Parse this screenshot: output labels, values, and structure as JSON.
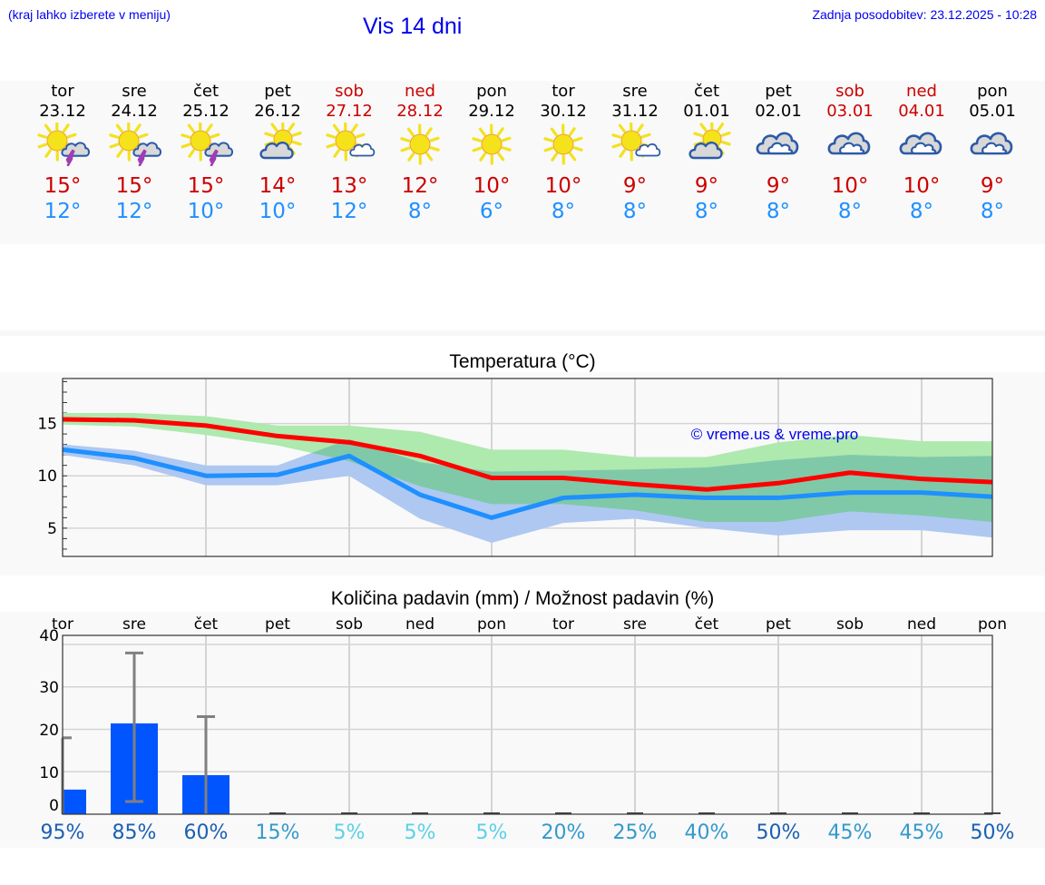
{
  "header": {
    "hint": "(kraj lahko izberete v meniju)",
    "title": "Vis 14 dni",
    "last_update": "Zadnja posodobitev: 23.12.2025 - 10:28"
  },
  "days": [
    {
      "dow": "tor",
      "date": "23.12",
      "weekend": false,
      "icon": "sun-cloud-thunder-icon",
      "tmax": "15°",
      "tmin": "12°",
      "precip_pct": "95%"
    },
    {
      "dow": "sre",
      "date": "24.12",
      "weekend": false,
      "icon": "sun-cloud-thunder-icon",
      "tmax": "15°",
      "tmin": "12°",
      "precip_pct": "85%"
    },
    {
      "dow": "čet",
      "date": "25.12",
      "weekend": false,
      "icon": "sun-cloud-thunder-icon",
      "tmax": "15°",
      "tmin": "10°",
      "precip_pct": "60%"
    },
    {
      "dow": "pet",
      "date": "26.12",
      "weekend": false,
      "icon": "cloud-sun-icon",
      "tmax": "14°",
      "tmin": "10°",
      "precip_pct": "15%"
    },
    {
      "dow": "sob",
      "date": "27.12",
      "weekend": true,
      "icon": "sun-small-cloud-icon",
      "tmax": "13°",
      "tmin": "12°",
      "precip_pct": "5%"
    },
    {
      "dow": "ned",
      "date": "28.12",
      "weekend": true,
      "icon": "sun-icon",
      "tmax": "12°",
      "tmin": "8°",
      "precip_pct": "5%"
    },
    {
      "dow": "pon",
      "date": "29.12",
      "weekend": false,
      "icon": "sun-icon",
      "tmax": "10°",
      "tmin": "6°",
      "precip_pct": "5%"
    },
    {
      "dow": "tor",
      "date": "30.12",
      "weekend": false,
      "icon": "sun-icon",
      "tmax": "10°",
      "tmin": "8°",
      "precip_pct": "20%"
    },
    {
      "dow": "sre",
      "date": "31.12",
      "weekend": false,
      "icon": "sun-small-cloud-icon",
      "tmax": "9°",
      "tmin": "8°",
      "precip_pct": "25%"
    },
    {
      "dow": "čet",
      "date": "01.01",
      "weekend": false,
      "icon": "cloud-sun-icon",
      "tmax": "9°",
      "tmin": "8°",
      "precip_pct": "40%"
    },
    {
      "dow": "pet",
      "date": "02.01",
      "weekend": false,
      "icon": "overcast-icon",
      "tmax": "9°",
      "tmin": "8°",
      "precip_pct": "50%"
    },
    {
      "dow": "sob",
      "date": "03.01",
      "weekend": true,
      "icon": "overcast-icon",
      "tmax": "10°",
      "tmin": "8°",
      "precip_pct": "45%"
    },
    {
      "dow": "ned",
      "date": "04.01",
      "weekend": true,
      "icon": "overcast-icon",
      "tmax": "10°",
      "tmin": "8°",
      "precip_pct": "45%"
    },
    {
      "dow": "pon",
      "date": "05.01",
      "weekend": false,
      "icon": "overcast-icon",
      "tmax": "9°",
      "tmin": "8°",
      "precip_pct": "50%"
    }
  ],
  "colors": {
    "max_line": "#ff0000",
    "min_line": "#1e90ff",
    "max_band": "#aee9ae",
    "min_band": "#aec8f2",
    "overlap_band": "#7fc9a8",
    "bar": "#0055ff",
    "errorbar": "#808080",
    "pct_high": "#1a5fb4",
    "pct_mid": "#3399cc",
    "pct_low": "#5bd0e6"
  },
  "chart_data": [
    {
      "type": "line",
      "title": "Temperatura (°C)",
      "xlabel": "",
      "ylabel": "",
      "x": [
        "23.12",
        "24.12",
        "25.12",
        "26.12",
        "27.12",
        "28.12",
        "29.12",
        "30.12",
        "31.12",
        "01.01",
        "02.01",
        "03.01",
        "04.01",
        "05.01"
      ],
      "ylim": [
        2.3,
        19.3
      ],
      "yticks": [
        5,
        10,
        15
      ],
      "grid": true,
      "annotation": "© vreme.us & vreme.pro",
      "series": [
        {
          "name": "Max temperature",
          "color": "#ff0000",
          "values": [
            15.4,
            15.3,
            14.8,
            13.8,
            13.2,
            11.9,
            9.8,
            9.8,
            9.2,
            8.7,
            9.3,
            10.3,
            9.7,
            9.4
          ]
        },
        {
          "name": "Min temperature",
          "color": "#1e90ff",
          "values": [
            12.5,
            11.7,
            10.0,
            10.1,
            11.9,
            8.2,
            6.0,
            7.9,
            8.2,
            7.9,
            7.9,
            8.4,
            8.4,
            8.0
          ]
        },
        {
          "name": "Max range",
          "type": "area",
          "color": "#aee9ae",
          "upper": [
            16.0,
            16.0,
            15.7,
            14.8,
            14.8,
            14.2,
            12.5,
            12.5,
            11.8,
            11.8,
            13.2,
            13.9,
            13.3,
            13.3
          ],
          "lower": [
            14.9,
            14.7,
            13.9,
            12.9,
            11.4,
            9.0,
            7.3,
            7.3,
            6.7,
            5.6,
            5.6,
            6.6,
            6.2,
            5.6
          ]
        },
        {
          "name": "Min range",
          "type": "area",
          "color": "#aec8f2",
          "upper": [
            13.0,
            12.4,
            11.0,
            11.0,
            13.5,
            11.3,
            10.4,
            10.5,
            10.6,
            10.8,
            11.5,
            12.0,
            11.8,
            11.9
          ],
          "lower": [
            12.0,
            11.0,
            9.1,
            9.1,
            10.0,
            5.9,
            3.6,
            5.5,
            5.9,
            5.0,
            4.3,
            4.8,
            4.8,
            4.1
          ]
        }
      ]
    },
    {
      "type": "bar",
      "title": "Količina padavin (mm) / Možnost padavin (%)",
      "categories": [
        "tor",
        "sre",
        "čet",
        "pet",
        "sob",
        "ned",
        "pon",
        "tor",
        "sre",
        "čet",
        "pet",
        "sob",
        "ned",
        "pon"
      ],
      "ylim": [
        0,
        40
      ],
      "yticks": [
        0,
        10,
        20,
        30,
        40
      ],
      "grid": true,
      "series": [
        {
          "name": "Količina padavin (mm)",
          "values": [
            5.8,
            21.4,
            9.2,
            0,
            0,
            0,
            0,
            0,
            0,
            0,
            0,
            0,
            0,
            0
          ]
        },
        {
          "name": "Razpon (mm)",
          "type": "errorbar",
          "upper": [
            18,
            38,
            23,
            0,
            0,
            0,
            0,
            0,
            0,
            0,
            0,
            0,
            0,
            0
          ],
          "lower": [
            0,
            3,
            0,
            0,
            0,
            0,
            0,
            0,
            0,
            0,
            0,
            0,
            0,
            0
          ]
        },
        {
          "name": "Možnost padavin (%)",
          "values": [
            95,
            85,
            60,
            15,
            5,
            5,
            5,
            20,
            25,
            40,
            50,
            45,
            45,
            50
          ]
        }
      ]
    }
  ]
}
